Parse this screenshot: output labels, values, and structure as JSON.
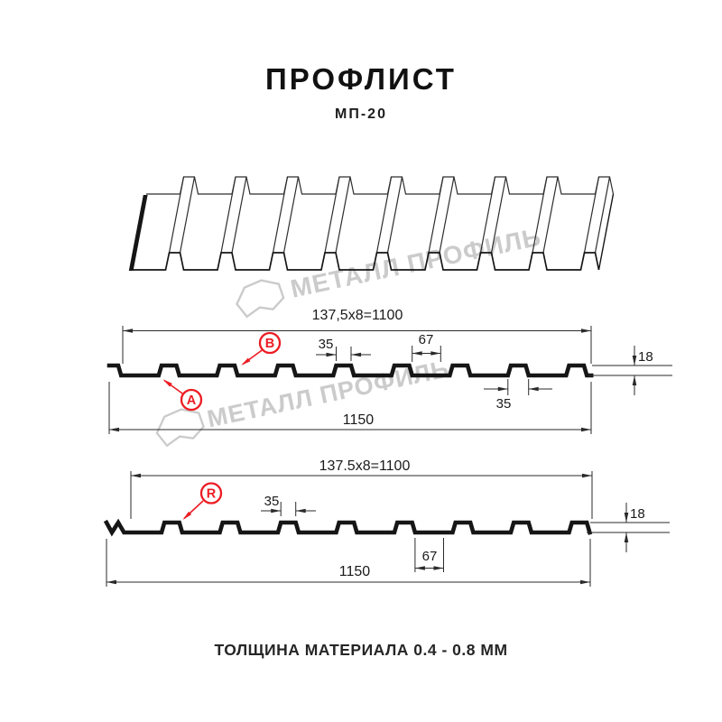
{
  "header": {
    "title": "ПРОФЛИСТ",
    "subtitle": "МП-20"
  },
  "watermark": {
    "text": "МЕТАЛЛ ПРОФИЛЬ"
  },
  "sections": {
    "section_a": {
      "pitch_label": "137,5x8=1100",
      "rib_top_width": "35",
      "valley_width": "67",
      "height": "18",
      "rib_base_width": "35",
      "overall_width": "1150",
      "marker_a": "A",
      "marker_b": "B"
    },
    "section_r": {
      "pitch_label": "137.5x8=1100",
      "rib_top_width": "35",
      "valley_width": "67",
      "height": "18",
      "overall_width": "1150",
      "marker_r": "R"
    }
  },
  "footer": {
    "thickness_note": "ТОЛЩИНА МАТЕРИАЛА 0.4 - 0.8 ММ"
  },
  "colors": {
    "accent_red": "#ec1b23",
    "line_ink": "#161616",
    "dim_ink": "#2a2a2a",
    "watermark_gray": "#cbcbcb"
  }
}
